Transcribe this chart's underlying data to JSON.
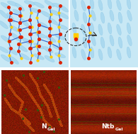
{
  "fig_width": 1.95,
  "fig_height": 1.89,
  "dpi": 100,
  "bg_color": "#ffffff",
  "top_bg": "#d8eef8",
  "label_left": "N",
  "label_left_sub": "Gel",
  "label_right": "Ntb",
  "label_right_sub": "Gel",
  "label_color": "#ffffff",
  "label_fontsize": 7,
  "label_sub_fontsize": 5,
  "lc_color_main": "#a8d8f0",
  "lc_color_dark": "#7bbfe8",
  "gel_color_red": "#cc2200",
  "gel_color_yellow": "#ffcc00",
  "gel_color_blue": "#3366cc",
  "photo_left_colors": {
    "bg": "#8B2200",
    "vein1": "#cc3300",
    "vein2": "#994400",
    "green": "#556600",
    "highlight": "#cc6600"
  },
  "photo_right_colors": {
    "bg": "#993300",
    "stripe1": "#cc4400",
    "stripe2": "#aa3300",
    "green": "#667700",
    "highlight": "#dd8800"
  },
  "circle_color": "#333333",
  "arrow_color": "#333333"
}
